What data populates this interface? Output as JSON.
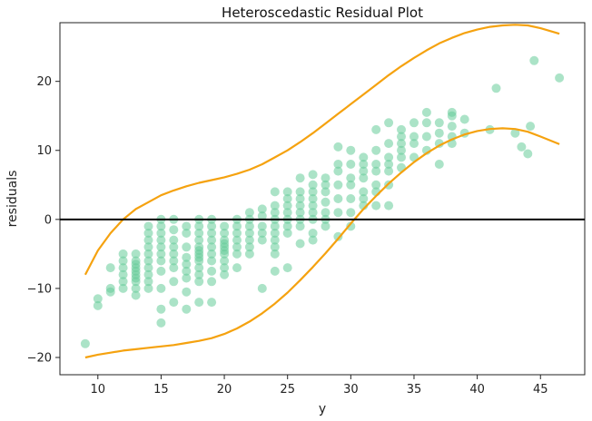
{
  "chart_data": {
    "type": "scatter",
    "title": "Heteroscedastic Residual Plot",
    "xlabel": "y",
    "ylabel": "residuals",
    "xlim": [
      7,
      48.5
    ],
    "ylim": [
      -22.5,
      28.5
    ],
    "xticks": [
      10,
      15,
      20,
      25,
      30,
      35,
      40,
      45
    ],
    "yticks": [
      -20,
      -10,
      0,
      10,
      20
    ],
    "grid": false,
    "reference_line_y": 0,
    "colors": {
      "points": "#66cc99",
      "band": "#f5a20f",
      "zero_line": "#000000"
    },
    "series": [
      {
        "type": "scatter",
        "points": [
          [
            9,
            -18
          ],
          [
            10,
            -11.5
          ],
          [
            10,
            -12.5
          ],
          [
            11,
            -7
          ],
          [
            11,
            -10
          ],
          [
            11,
            -10.5
          ],
          [
            12,
            -5
          ],
          [
            12,
            -6
          ],
          [
            12,
            -7
          ],
          [
            12,
            -8
          ],
          [
            12,
            -9
          ],
          [
            12,
            -10
          ],
          [
            13,
            -5
          ],
          [
            13,
            -6
          ],
          [
            13,
            -6.5
          ],
          [
            13,
            -7
          ],
          [
            13,
            -7.5
          ],
          [
            13,
            -8
          ],
          [
            13,
            -8.5
          ],
          [
            13,
            -9
          ],
          [
            13,
            -10
          ],
          [
            13,
            -11
          ],
          [
            14,
            -1
          ],
          [
            14,
            -2
          ],
          [
            14,
            -3
          ],
          [
            14,
            -4
          ],
          [
            14,
            -5
          ],
          [
            14,
            -6
          ],
          [
            14,
            -7
          ],
          [
            14,
            -8
          ],
          [
            14,
            -9
          ],
          [
            14,
            -10
          ],
          [
            15,
            0
          ],
          [
            15,
            -1
          ],
          [
            15,
            -2
          ],
          [
            15,
            -3
          ],
          [
            15,
            -4
          ],
          [
            15,
            -5
          ],
          [
            15,
            -6
          ],
          [
            15,
            -7.5
          ],
          [
            15,
            -10
          ],
          [
            15,
            -13
          ],
          [
            15,
            -15
          ],
          [
            16,
            0
          ],
          [
            16,
            -1.5
          ],
          [
            16,
            -3
          ],
          [
            16,
            -4
          ],
          [
            16,
            -5
          ],
          [
            16,
            -6
          ],
          [
            16,
            -7
          ],
          [
            16,
            -9
          ],
          [
            16,
            -12
          ],
          [
            17,
            -1
          ],
          [
            17,
            -2
          ],
          [
            17,
            -4
          ],
          [
            17,
            -5.5
          ],
          [
            17,
            -6.5
          ],
          [
            17,
            -7.5
          ],
          [
            17,
            -8.5
          ],
          [
            17,
            -10.5
          ],
          [
            17,
            -13
          ],
          [
            18,
            0
          ],
          [
            18,
            -1
          ],
          [
            18,
            -2
          ],
          [
            18,
            -3
          ],
          [
            18,
            -4
          ],
          [
            18,
            -4.5
          ],
          [
            18,
            -5
          ],
          [
            18,
            -5.5
          ],
          [
            18,
            -6
          ],
          [
            18,
            -7
          ],
          [
            18,
            -8
          ],
          [
            18,
            -9
          ],
          [
            18,
            -12
          ],
          [
            19,
            0
          ],
          [
            19,
            -1
          ],
          [
            19,
            -2
          ],
          [
            19,
            -3
          ],
          [
            19,
            -4
          ],
          [
            19,
            -5
          ],
          [
            19,
            -6
          ],
          [
            19,
            -7.5
          ],
          [
            19,
            -9
          ],
          [
            19,
            -12
          ],
          [
            20,
            -1
          ],
          [
            20,
            -2
          ],
          [
            20,
            -3
          ],
          [
            20,
            -3.5
          ],
          [
            20,
            -4
          ],
          [
            20,
            -4.5
          ],
          [
            20,
            -5
          ],
          [
            20,
            -6
          ],
          [
            20,
            -7
          ],
          [
            20,
            -8
          ],
          [
            21,
            0
          ],
          [
            21,
            -1
          ],
          [
            21,
            -2
          ],
          [
            21,
            -3
          ],
          [
            21,
            -4
          ],
          [
            21,
            -5
          ],
          [
            21,
            -7
          ],
          [
            22,
            1
          ],
          [
            22,
            0
          ],
          [
            22,
            -1
          ],
          [
            22,
            -2
          ],
          [
            22,
            -3
          ],
          [
            22,
            -4
          ],
          [
            22,
            -5
          ],
          [
            23,
            1.5
          ],
          [
            23,
            0.5
          ],
          [
            23,
            -1
          ],
          [
            23,
            -2
          ],
          [
            23,
            -3
          ],
          [
            23,
            -10
          ],
          [
            24,
            4
          ],
          [
            24,
            2
          ],
          [
            24,
            1
          ],
          [
            24,
            0
          ],
          [
            24,
            -1
          ],
          [
            24,
            -2
          ],
          [
            24,
            -3
          ],
          [
            24,
            -4
          ],
          [
            24,
            -5
          ],
          [
            24,
            -7.5
          ],
          [
            25,
            4
          ],
          [
            25,
            3
          ],
          [
            25,
            2
          ],
          [
            25,
            1
          ],
          [
            25,
            0
          ],
          [
            25,
            -1
          ],
          [
            25,
            -2
          ],
          [
            25,
            -7
          ],
          [
            26,
            6
          ],
          [
            26,
            4
          ],
          [
            26,
            3
          ],
          [
            26,
            2
          ],
          [
            26,
            1
          ],
          [
            26,
            0
          ],
          [
            26,
            -1
          ],
          [
            26,
            -3.5
          ],
          [
            27,
            6.5
          ],
          [
            27,
            5
          ],
          [
            27,
            4
          ],
          [
            27,
            3
          ],
          [
            27,
            2
          ],
          [
            27,
            1
          ],
          [
            27,
            0
          ],
          [
            27,
            -2
          ],
          [
            27,
            -3
          ],
          [
            28,
            6
          ],
          [
            28,
            5
          ],
          [
            28,
            4
          ],
          [
            28,
            2.5
          ],
          [
            28,
            1
          ],
          [
            28,
            0
          ],
          [
            28,
            -1
          ],
          [
            29,
            10.5
          ],
          [
            29,
            8
          ],
          [
            29,
            7
          ],
          [
            29,
            5
          ],
          [
            29,
            3
          ],
          [
            29,
            1
          ],
          [
            29,
            -2.5
          ],
          [
            30,
            10
          ],
          [
            30,
            8
          ],
          [
            30,
            6
          ],
          [
            30,
            5
          ],
          [
            30,
            3
          ],
          [
            30,
            1
          ],
          [
            30,
            -1
          ],
          [
            31,
            9
          ],
          [
            31,
            8
          ],
          [
            31,
            7
          ],
          [
            31,
            6
          ],
          [
            31,
            4
          ],
          [
            31,
            3
          ],
          [
            31,
            2
          ],
          [
            32,
            13
          ],
          [
            32,
            10
          ],
          [
            32,
            8
          ],
          [
            32,
            7
          ],
          [
            32,
            5
          ],
          [
            32,
            4
          ],
          [
            32,
            2
          ],
          [
            33,
            14
          ],
          [
            33,
            11
          ],
          [
            33,
            9
          ],
          [
            33,
            8
          ],
          [
            33,
            7
          ],
          [
            33,
            5
          ],
          [
            33,
            2
          ],
          [
            34,
            13
          ],
          [
            34,
            12
          ],
          [
            34,
            11
          ],
          [
            34,
            10
          ],
          [
            34,
            9
          ],
          [
            34,
            7.5
          ],
          [
            35,
            14
          ],
          [
            35,
            12
          ],
          [
            35,
            11
          ],
          [
            35,
            9
          ],
          [
            36,
            15.5
          ],
          [
            36,
            14
          ],
          [
            36,
            12
          ],
          [
            36,
            10
          ],
          [
            37,
            14
          ],
          [
            37,
            12.5
          ],
          [
            37,
            11
          ],
          [
            37,
            8
          ],
          [
            38,
            15.5
          ],
          [
            38,
            15
          ],
          [
            38,
            13.5
          ],
          [
            38,
            12
          ],
          [
            38,
            11
          ],
          [
            39,
            14.5
          ],
          [
            39,
            12.5
          ],
          [
            41,
            13
          ],
          [
            41.5,
            19
          ],
          [
            43,
            12.5
          ],
          [
            43.5,
            10.5
          ],
          [
            44,
            9.5
          ],
          [
            44.2,
            13.5
          ],
          [
            44.5,
            23
          ],
          [
            46.5,
            20.5
          ]
        ]
      },
      {
        "type": "line",
        "x": [
          9,
          10,
          11,
          12,
          13,
          14,
          15,
          16,
          17,
          18,
          19,
          20,
          21,
          22,
          23,
          24,
          25,
          26,
          27,
          28,
          29,
          30,
          31,
          32,
          33,
          34,
          35,
          36,
          37,
          38,
          39,
          40,
          41,
          42,
          43,
          44,
          45,
          46.5
        ],
        "y": [
          -8,
          -4.5,
          -2,
          0,
          1.5,
          2.5,
          3.5,
          4.2,
          4.8,
          5.3,
          5.7,
          6.1,
          6.6,
          7.2,
          8,
          9,
          10,
          11.2,
          12.5,
          13.9,
          15.3,
          16.7,
          18.1,
          19.5,
          20.9,
          22.2,
          23.4,
          24.5,
          25.5,
          26.3,
          27,
          27.5,
          27.9,
          28.1,
          28.2,
          28.1,
          27.7,
          26.9
        ]
      },
      {
        "type": "line",
        "x": [
          9,
          10,
          11,
          12,
          13,
          14,
          15,
          16,
          17,
          18,
          19,
          20,
          21,
          22,
          23,
          24,
          25,
          26,
          27,
          28,
          29,
          30,
          31,
          32,
          33,
          34,
          35,
          36,
          37,
          38,
          39,
          40,
          41,
          42,
          43,
          44,
          45,
          46.5
        ],
        "y": [
          -20,
          -19.6,
          -19.3,
          -19,
          -18.8,
          -18.6,
          -18.4,
          -18.2,
          -17.9,
          -17.6,
          -17.2,
          -16.6,
          -15.8,
          -14.8,
          -13.6,
          -12.2,
          -10.6,
          -8.8,
          -6.9,
          -4.9,
          -2.8,
          -0.6,
          1.5,
          3.4,
          5.2,
          6.8,
          8.3,
          9.6,
          10.7,
          11.6,
          12.3,
          12.8,
          13.1,
          13.2,
          13.1,
          12.7,
          12,
          10.9
        ]
      }
    ]
  }
}
